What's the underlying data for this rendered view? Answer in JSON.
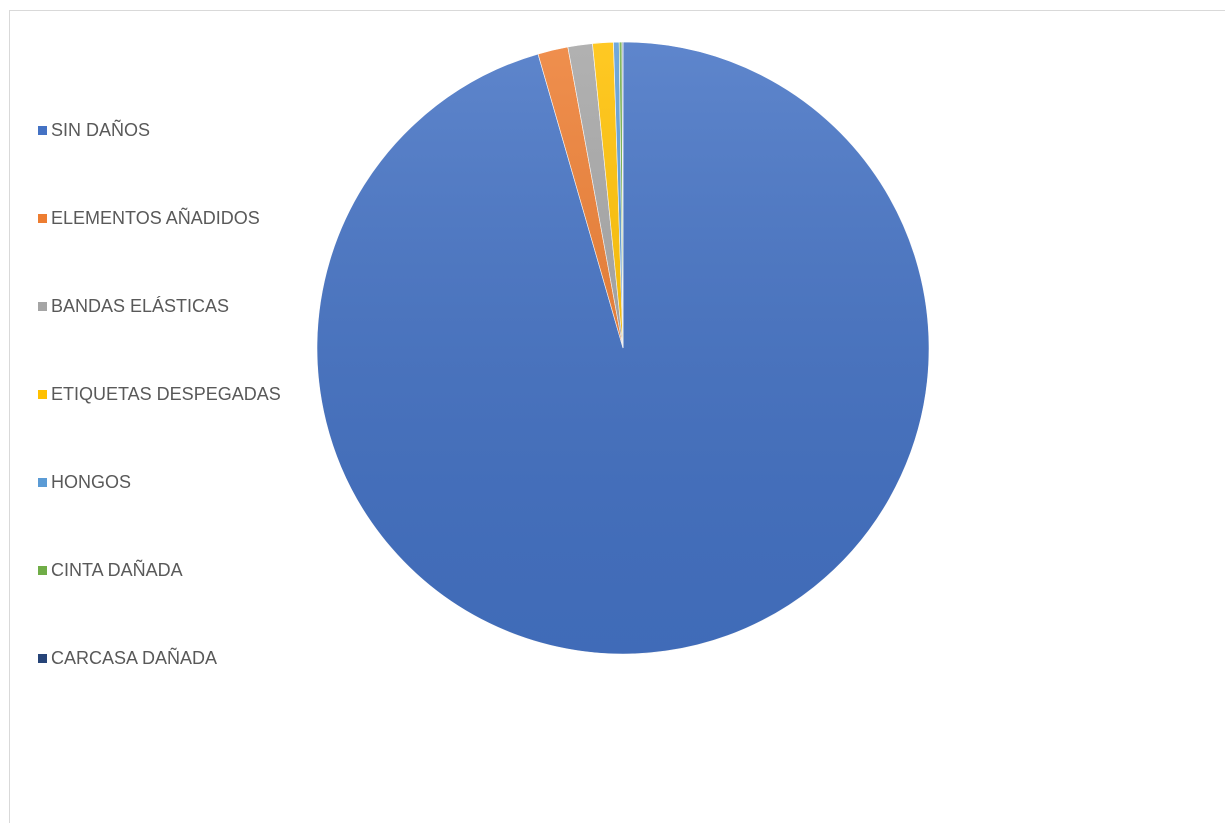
{
  "chart_data": {
    "type": "pie",
    "title": "",
    "legend_position": "left",
    "slices": [
      {
        "label": "SIN DAÑOS",
        "value": 96.0,
        "color": "#4472C4"
      },
      {
        "label": "ELEMENTOS AÑADIDOS",
        "value": 1.6,
        "color": "#ED7D31"
      },
      {
        "label": "BANDAS ELÁSTICAS",
        "value": 1.3,
        "color": "#A5A5A5"
      },
      {
        "label": "ETIQUETAS DESPEGADAS",
        "value": 1.1,
        "color": "#FFC000"
      },
      {
        "label": "HONGOS",
        "value": 0.3,
        "color": "#5B9BD5"
      },
      {
        "label": "CINTA DAÑADA",
        "value": 0.15,
        "color": "#70AD47"
      },
      {
        "label": "CARCASA DAÑADA",
        "value": 0.05,
        "color": "#264478"
      }
    ]
  }
}
